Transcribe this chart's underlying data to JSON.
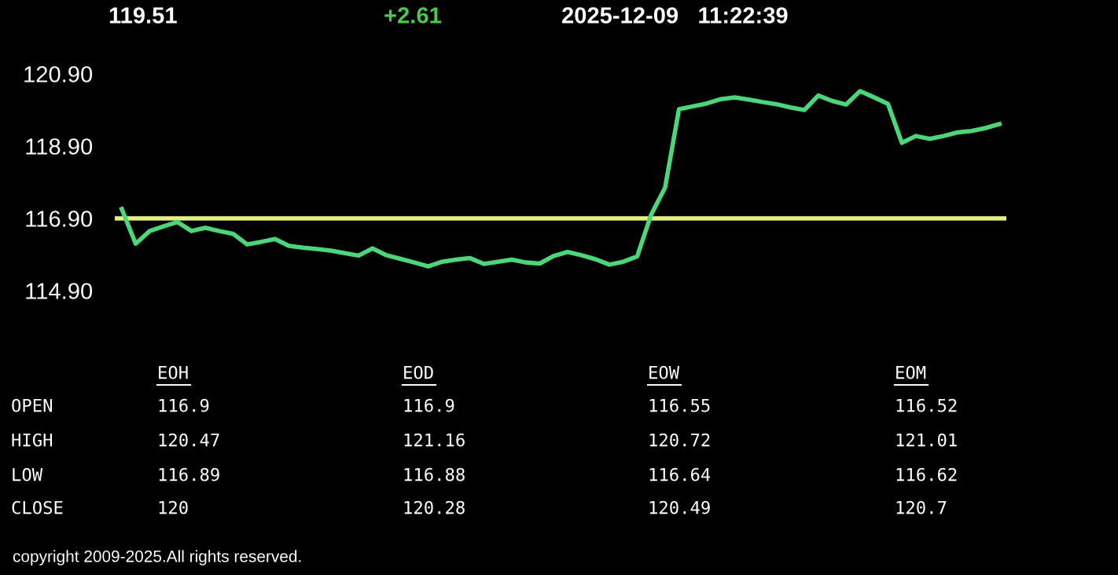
{
  "chart_data": [
    {
      "type": "line",
      "title": "119.51",
      "subtitle": "+2.61",
      "annotations": [
        "2025-12-09   11:22:39",
        "copyright 2009-2025.All rights reserved."
      ],
      "categories": [
        null,
        null,
        null,
        null,
        null,
        null,
        null,
        null,
        null,
        null,
        null,
        null,
        null,
        null,
        null,
        null,
        null,
        null,
        null,
        null,
        null,
        null,
        null,
        null,
        null,
        null,
        null,
        null,
        null,
        null,
        null,
        null,
        null,
        null,
        null,
        null,
        null,
        null,
        null,
        null,
        null,
        null,
        null,
        null,
        null,
        null,
        null,
        null,
        null,
        null,
        null,
        null,
        null,
        null,
        null,
        null,
        null,
        null,
        null,
        null,
        null,
        null,
        null,
        null
      ],
      "series": [
        {
          "color": "#4cd67a",
          "values": [
            117.16,
            116.2,
            116.55,
            116.68,
            116.8,
            116.55,
            116.64,
            116.55,
            116.47,
            116.18,
            116.25,
            116.33,
            116.14,
            116.09,
            116.05,
            116.01,
            115.94,
            115.87,
            116.07,
            115.88,
            115.78,
            115.68,
            115.57,
            115.7,
            115.76,
            115.8,
            115.64,
            115.7,
            115.76,
            115.68,
            115.65,
            115.86,
            115.97,
            115.88,
            115.77,
            115.62,
            115.7,
            115.85,
            117.0,
            117.75,
            119.92,
            120.0,
            120.08,
            120.2,
            120.25,
            120.19,
            120.12,
            120.06,
            119.97,
            119.9,
            120.3,
            120.15,
            120.05,
            120.42,
            120.25,
            120.07,
            118.99,
            119.18,
            119.1,
            119.18,
            119.28,
            119.32,
            119.4,
            119.51
          ]
        }
      ],
      "ylim": [
        114.9,
        120.9
      ],
      "yticks": [
        {
          "value": 114.9,
          "label": "114.90"
        },
        {
          "value": 116.9,
          "label": "116.90"
        },
        {
          "value": 118.9,
          "label": "118.90"
        },
        {
          "value": 120.9,
          "label": "120.90"
        }
      ],
      "tick_labels": "y",
      "grid": false,
      "legend": false,
      "ref_lines": [
        {
          "axis": "y",
          "value": 116.9,
          "color": "#e6f07a"
        }
      ]
    },
    {
      "type": "other",
      "categories": [
        "EOH",
        "EOD",
        "EOW",
        "EOM"
      ],
      "y_categories": [
        "OPEN",
        "HIGH",
        "LOW",
        "CLOSE"
      ],
      "cell_labels": [
        [
          "116.9",
          "116.9",
          "116.55",
          "116.52"
        ],
        [
          "120.47",
          "121.16",
          "120.72",
          "121.01"
        ],
        [
          "116.89",
          "116.88",
          "116.64",
          "116.62"
        ],
        [
          "120",
          "120.28",
          "120.49",
          "120.7"
        ]
      ]
    }
  ]
}
